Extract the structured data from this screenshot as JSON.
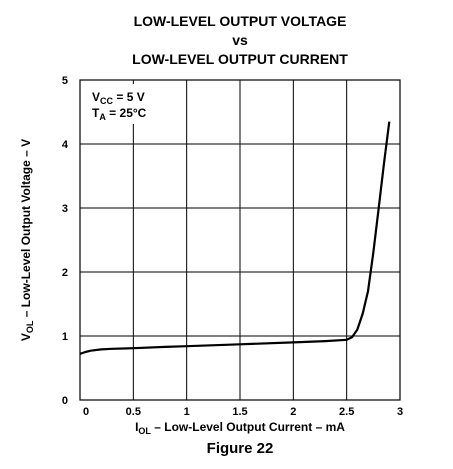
{
  "chart_data": {
    "type": "line",
    "title_lines": [
      "LOW-LEVEL OUTPUT VOLTAGE",
      "vs",
      "LOW-LEVEL OUTPUT CURRENT"
    ],
    "xlabel": {
      "main": "I",
      "sub": "OL",
      "rest": " – Low-Level Output Current – mA"
    },
    "ylabel": {
      "main": "V",
      "sub": "OL",
      "rest": " – Low-Level Output Voltage – V"
    },
    "xlim": [
      0,
      3
    ],
    "ylim": [
      0,
      5
    ],
    "x_ticks": [
      "0",
      "0.5",
      "1",
      "1.5",
      "2",
      "2.5",
      "3"
    ],
    "y_ticks": [
      "0",
      "1",
      "2",
      "3",
      "4",
      "5"
    ],
    "grid": true,
    "conditions": [
      {
        "main": "V",
        "sub": "CC",
        "rest": " = 5 V"
      },
      {
        "main": "T",
        "sub": "A",
        "rest": " = 25°C"
      }
    ],
    "series": [
      {
        "x": [
          0,
          0.05,
          0.1,
          0.2,
          0.3,
          0.5,
          0.8,
          1.0,
          1.5,
          2.0,
          2.3,
          2.5,
          2.55,
          2.6,
          2.65,
          2.7,
          2.75,
          2.8,
          2.85,
          2.9
        ],
        "y": [
          0.72,
          0.75,
          0.77,
          0.79,
          0.8,
          0.81,
          0.83,
          0.84,
          0.87,
          0.9,
          0.92,
          0.94,
          0.98,
          1.1,
          1.35,
          1.7,
          2.3,
          3.0,
          3.7,
          4.35
        ]
      }
    ],
    "caption": "Figure 22"
  }
}
